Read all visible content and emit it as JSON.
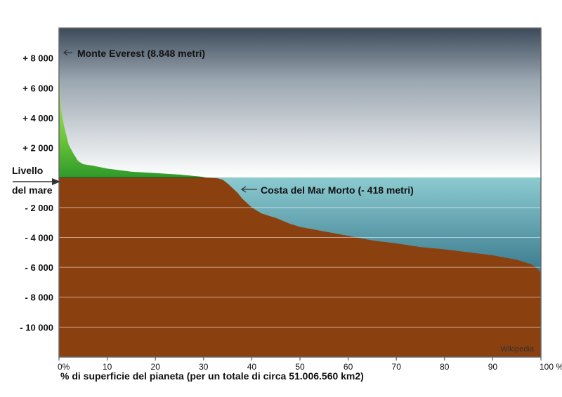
{
  "chart_data": {
    "type": "area",
    "title": "",
    "xlabel": "% di superficie del pianeta (per un totale di circa 51.006.560 km2)",
    "ylabel": "",
    "xlim": [
      0,
      100
    ],
    "ylim": [
      -12000,
      10000
    ],
    "x_ticks": [
      0,
      10,
      20,
      30,
      40,
      50,
      60,
      70,
      80,
      90,
      100
    ],
    "x_tick_labels": [
      "0%",
      "10",
      "20",
      "30",
      "40",
      "50",
      "60",
      "70",
      "80",
      "90",
      "100 %"
    ],
    "y_ticks": [
      8000,
      6000,
      4000,
      2000,
      -2000,
      -4000,
      -6000,
      -8000,
      -10000
    ],
    "y_tick_labels": [
      "+ 8 000",
      "+ 6 000",
      "+ 4 000",
      "+ 2 000",
      "- 2 000",
      "- 4 000",
      "- 6 000",
      "- 8 000",
      "- 10 000"
    ],
    "sea_level_label": [
      "Livello",
      "del mare"
    ],
    "grid": true,
    "series": [
      {
        "values_x": [
          0,
          0.2,
          0.5,
          1,
          2,
          3,
          4,
          5,
          7,
          10,
          15,
          20,
          25,
          29,
          31,
          33,
          34,
          35,
          36,
          37,
          38,
          39,
          40,
          42,
          45,
          48,
          50,
          55,
          60,
          65,
          70,
          75,
          80,
          85,
          90,
          95,
          97,
          98,
          99,
          100
        ],
        "values_y": [
          8848,
          6000,
          4500,
          3500,
          2200,
          1600,
          1100,
          900,
          800,
          600,
          400,
          300,
          200,
          80,
          0,
          -50,
          -150,
          -400,
          -700,
          -1000,
          -1400,
          -1700,
          -2000,
          -2400,
          -2700,
          -3100,
          -3300,
          -3600,
          -3900,
          -4200,
          -4400,
          -4650,
          -4800,
          -5000,
          -5200,
          -5500,
          -5700,
          -5800,
          -6000,
          -6400
        ]
      }
    ],
    "annotations": [
      {
        "text": "Monte Everest (8.848 metri)",
        "x": 0,
        "y": 8848
      },
      {
        "text": "Costa del Mar Morto (- 418 metri)",
        "x": 36,
        "y": -418
      }
    ],
    "credit": "Wikipedia",
    "colors": {
      "land": "#2f9a2a",
      "land_top": "#c9ec5a",
      "seabed": "#8b4010",
      "sea_top": "#8ccbd0",
      "sea_bottom": "#0e2c40",
      "sky_top": "#3c4a5a",
      "sky_bottom": "#ffffff",
      "frame": "#666666"
    }
  }
}
